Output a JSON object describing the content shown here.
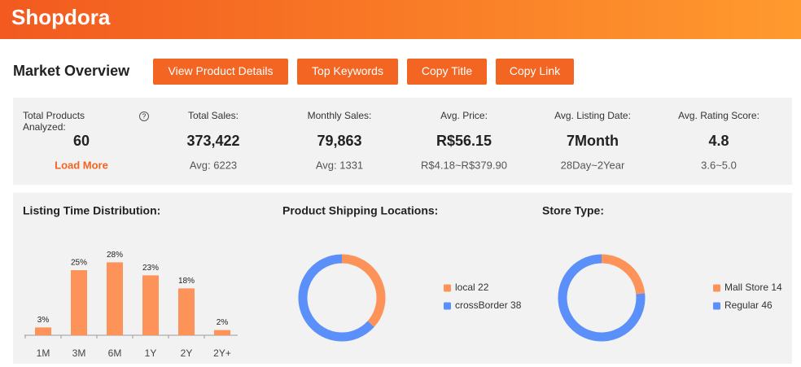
{
  "header": {
    "logo": "Shopdora"
  },
  "toolbar": {
    "title": "Market Overview",
    "buttons": [
      "View Product Details",
      "Top Keywords",
      "Copy Title",
      "Copy Link"
    ]
  },
  "stats": [
    {
      "label": "Total Products Analyzed:",
      "value": "60",
      "sub": "Load More"
    },
    {
      "label": "Total Sales:",
      "value": "373,422",
      "sub": "Avg: 6223"
    },
    {
      "label": "Monthly Sales:",
      "value": "79,863",
      "sub": "Avg: 1331"
    },
    {
      "label": "Avg. Price:",
      "value": "R$56.15",
      "sub": "R$4.18~R$379.90"
    },
    {
      "label": "Avg. Listing Date:",
      "value": "7Month",
      "sub": "28Day~2Year"
    },
    {
      "label": "Avg. Rating Score:",
      "value": "4.8",
      "sub": "3.6~5.0"
    }
  ],
  "chart_data": [
    {
      "type": "bar",
      "title": "Listing Time Distribution:",
      "categories": [
        "1M",
        "3M",
        "6M",
        "1Y",
        "2Y",
        "2Y+"
      ],
      "values": [
        3,
        25,
        28,
        23,
        18,
        2
      ],
      "value_labels": [
        "3%",
        "25%",
        "28%",
        "23%",
        "18%",
        "2%"
      ],
      "color": "#fd9358"
    },
    {
      "type": "donut",
      "title": "Product Shipping Locations:",
      "series": [
        {
          "name": "local",
          "color": "#fd9358",
          "values": [
            22
          ]
        },
        {
          "name": "crossBorder",
          "color": "#5b8ff9",
          "values": [
            38
          ]
        }
      ]
    },
    {
      "type": "donut",
      "title": "Store Type:",
      "series": [
        {
          "name": "Mall Store",
          "color": "#fd9358",
          "values": [
            14
          ]
        },
        {
          "name": "Regular",
          "color": "#5b8ff9",
          "values": [
            46
          ]
        }
      ]
    }
  ]
}
